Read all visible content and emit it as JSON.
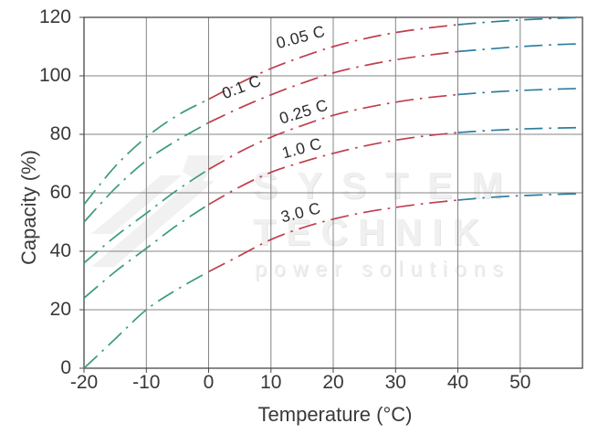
{
  "chart_data": {
    "type": "line",
    "title": "",
    "xlabel": "Temperature (°C)",
    "ylabel": "Capacity (%)",
    "xlim": [
      -20,
      60
    ],
    "ylim": [
      0,
      120
    ],
    "grid": true,
    "legend_position": "inline-curve-labels",
    "x_ticks": [
      -20,
      -10,
      0,
      10,
      20,
      30,
      40,
      50
    ],
    "x_tick_labels": [
      "-20",
      "-10",
      "0",
      "10",
      "20",
      "30",
      "40",
      "50"
    ],
    "y_ticks": [
      0,
      20,
      40,
      60,
      80,
      100,
      120
    ],
    "y_tick_labels": [
      "0",
      "20",
      "40",
      "60",
      "80",
      "100",
      "120"
    ],
    "x": [
      -20,
      -15,
      -10,
      -5,
      0,
      5,
      10,
      15,
      20,
      25,
      30,
      35,
      40,
      45,
      50,
      55,
      60
    ],
    "series": [
      {
        "name": "0.05 C",
        "values": [
          56,
          69,
          79,
          86.5,
          92,
          97.5,
          102.5,
          106.5,
          110,
          112.7,
          114.8,
          116.3,
          117.5,
          118.4,
          119.1,
          119.6,
          120
        ]
      },
      {
        "name": "0.1 C",
        "values": [
          50,
          61.5,
          71,
          78,
          84,
          89,
          93.5,
          97.5,
          101,
          103.5,
          105.5,
          107,
          108.3,
          109.2,
          110,
          110.6,
          111
        ]
      },
      {
        "name": "0.25 C",
        "values": [
          36,
          45,
          53,
          61,
          68,
          74,
          79,
          83,
          86.5,
          89,
          91,
          92.5,
          93.6,
          94.4,
          95,
          95.4,
          95.7
        ]
      },
      {
        "name": "1.0 C",
        "values": [
          24,
          33,
          41,
          49,
          56,
          62,
          67,
          70.5,
          73.5,
          76,
          78,
          79.5,
          80.6,
          81.3,
          81.8,
          82.1,
          82.3
        ]
      },
      {
        "name": "3.0 C",
        "values": [
          0,
          10,
          20,
          27,
          33,
          38.5,
          44,
          48,
          51,
          53.3,
          55,
          56.4,
          57.5,
          58.4,
          59,
          59.4,
          59.7
        ]
      }
    ],
    "annotations": [
      {
        "text": "0.05 C",
        "t": 15.0,
        "cap": 111.5,
        "rot": -15
      },
      {
        "text": "0.1 C",
        "t": 5.6,
        "cap": 94.5,
        "rot": -21
      },
      {
        "text": "0.25 C",
        "t": 15.5,
        "cap": 86.0,
        "rot": -17
      },
      {
        "text": "1.0 C",
        "t": 15.2,
        "cap": 73.5,
        "rot": -15
      },
      {
        "text": "3.0 C",
        "t": 15.0,
        "cap": 51.5,
        "rot": -14
      }
    ],
    "line_style": "dash-dot",
    "segment_breaks_c": [
      0,
      40
    ],
    "colors": {
      "below_0c": "#3a9a81",
      "mid_0_40c": "#bf3e4c",
      "above_40c": "#2d7da0",
      "grid": "#848484",
      "border": "#474747",
      "tick_text": "#383838",
      "annotation_text": "#2b2b2b"
    }
  },
  "watermark": {
    "line1": "SYSTEM",
    "line2": "TECHNIK",
    "line3": "power solutions"
  }
}
